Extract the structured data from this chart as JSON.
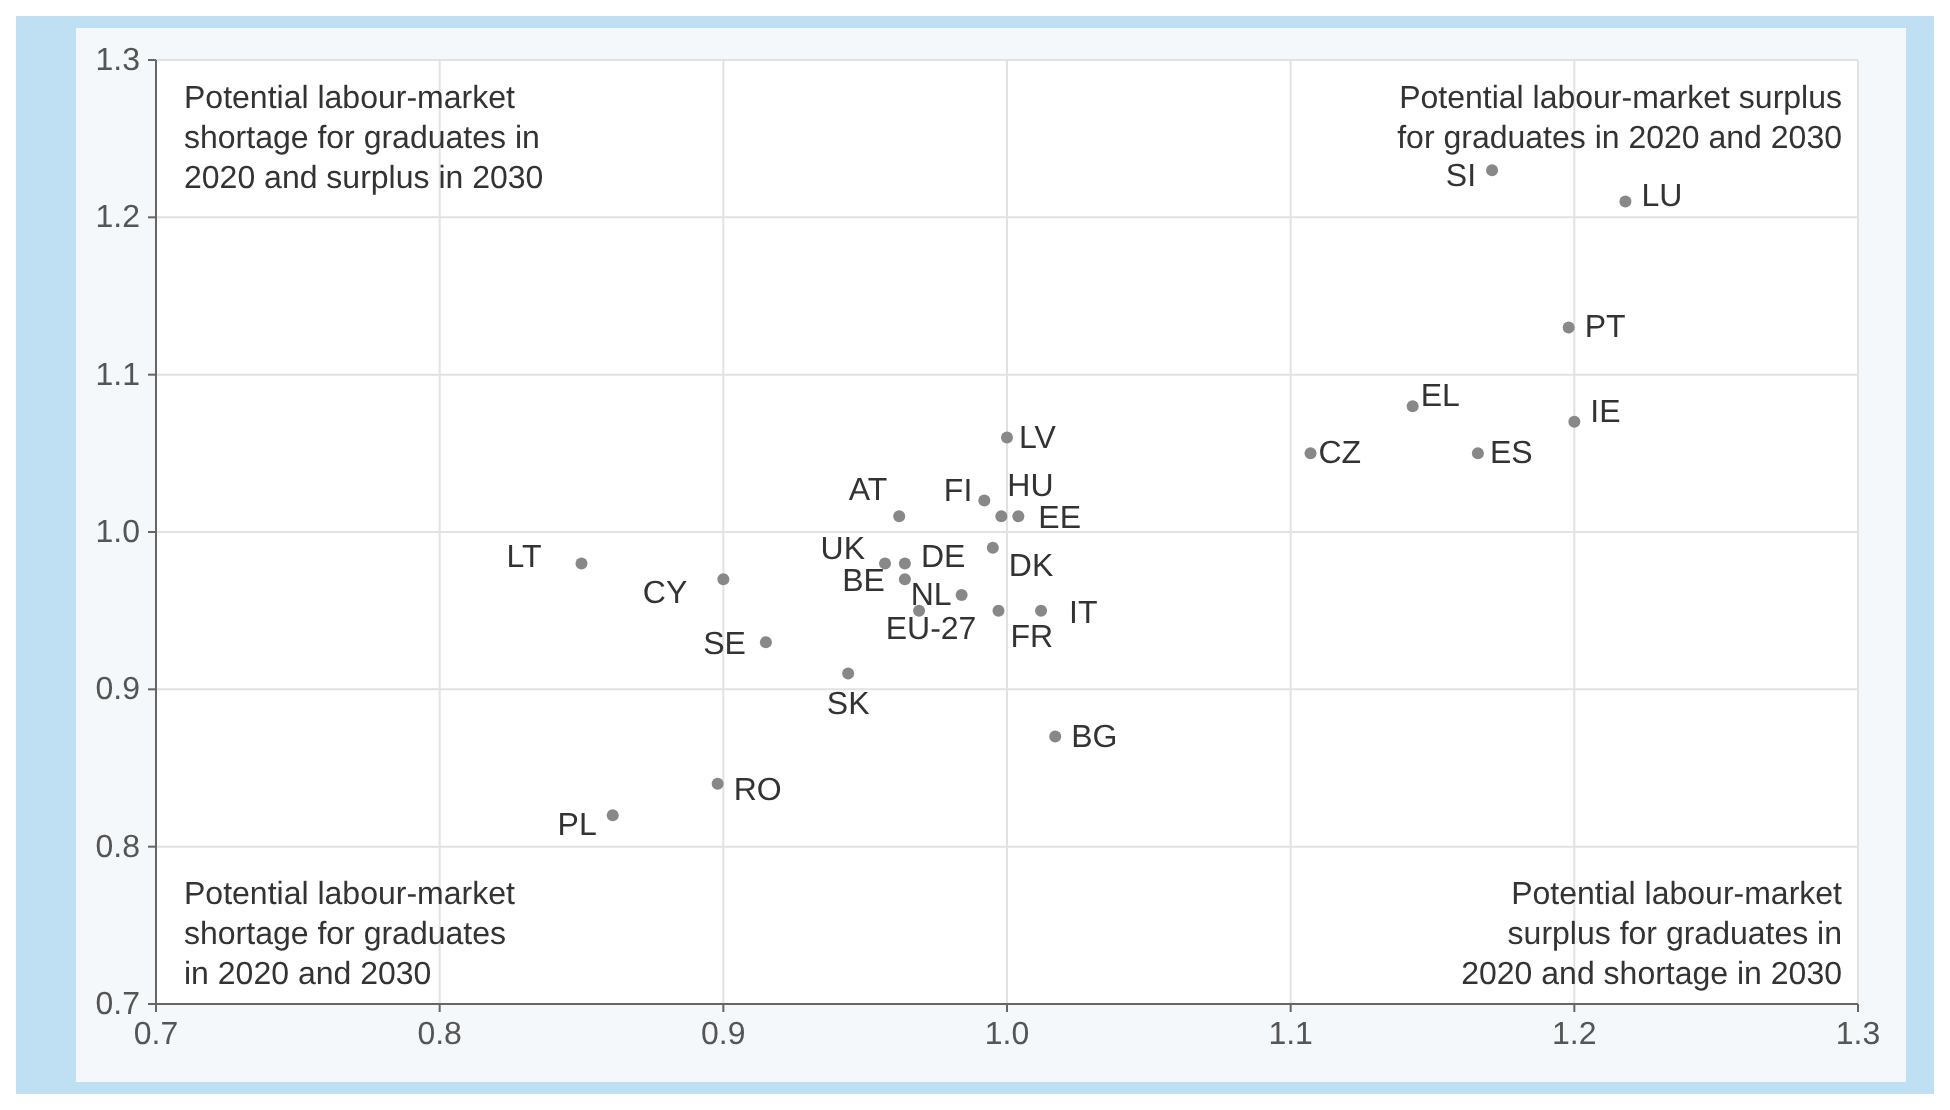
{
  "chart_data": {
    "type": "scatter",
    "xlim": [
      0.7,
      1.3
    ],
    "ylim": [
      0.7,
      1.3
    ],
    "xticks": [
      {
        "value": 0.7,
        "label": "0.7"
      },
      {
        "value": 0.8,
        "label": "0.8"
      },
      {
        "value": 0.9,
        "label": "0.9"
      },
      {
        "value": 1.0,
        "label": "1.0"
      },
      {
        "value": 1.1,
        "label": "1.1"
      },
      {
        "value": 1.2,
        "label": "1.2"
      },
      {
        "value": 1.3,
        "label": "1.3"
      }
    ],
    "yticks": [
      {
        "value": 0.7,
        "label": "0.7"
      },
      {
        "value": 0.8,
        "label": "0.8"
      },
      {
        "value": 0.9,
        "label": "0.9"
      },
      {
        "value": 1.0,
        "label": "1.0"
      },
      {
        "value": 1.1,
        "label": "1.1"
      },
      {
        "value": 1.2,
        "label": "1.2"
      },
      {
        "value": 1.3,
        "label": "1.3"
      }
    ],
    "grid": true,
    "marker": "circle",
    "series": [
      {
        "color": "#888888",
        "x": [
          1.0,
          0.962,
          0.992,
          0.998,
          1.004,
          0.995,
          0.957,
          0.964,
          0.964,
          0.984,
          1.012,
          0.997,
          0.969,
          0.85,
          0.9,
          0.915,
          0.944,
          1.017,
          0.898,
          0.861,
          1.171,
          1.218,
          1.198,
          1.143,
          1.2,
          1.107,
          1.166
        ],
        "values": [
          1.06,
          1.01,
          1.02,
          1.01,
          1.01,
          0.99,
          0.98,
          0.98,
          0.97,
          0.96,
          0.95,
          0.95,
          0.95,
          0.98,
          0.97,
          0.93,
          0.91,
          0.87,
          0.84,
          0.82,
          1.23,
          1.21,
          1.13,
          1.08,
          1.07,
          1.05,
          1.05
        ]
      }
    ],
    "annotations": [
      "Potential labour-market\nshortage for graduates in\n2020 and surplus in 2030",
      "Potential labour-market surplus\nfor graduates in 2020 and 2030",
      "Potential labour-market\nshortage for graduates\nin 2020 and 2030",
      "Potential labour-market\nsurplus for graduates in\n2020 and shortage in 2030",
      {
        "text": "LV",
        "x": 1.0,
        "y": 1.06
      },
      {
        "text": "AT",
        "x": 0.962,
        "y": 1.01
      },
      {
        "text": "FI",
        "x": 0.992,
        "y": 1.02
      },
      {
        "text": "HU",
        "x": 0.998,
        "y": 1.01
      },
      {
        "text": "EE",
        "x": 1.004,
        "y": 1.01
      },
      {
        "text": "DK",
        "x": 0.995,
        "y": 0.99
      },
      {
        "text": "UK",
        "x": 0.957,
        "y": 0.98
      },
      {
        "text": "DE",
        "x": 0.964,
        "y": 0.98
      },
      {
        "text": "BE",
        "x": 0.964,
        "y": 0.97
      },
      {
        "text": "NL",
        "x": 0.984,
        "y": 0.96
      },
      {
        "text": "IT",
        "x": 1.012,
        "y": 0.95
      },
      {
        "text": "FR",
        "x": 0.997,
        "y": 0.95
      },
      {
        "text": "EU-27",
        "x": 0.969,
        "y": 0.95
      },
      {
        "text": "LT",
        "x": 0.85,
        "y": 0.98
      },
      {
        "text": "CY",
        "x": 0.9,
        "y": 0.97
      },
      {
        "text": "SE",
        "x": 0.915,
        "y": 0.93
      },
      {
        "text": "SK",
        "x": 0.944,
        "y": 0.91
      },
      {
        "text": "BG",
        "x": 1.017,
        "y": 0.87
      },
      {
        "text": "RO",
        "x": 0.898,
        "y": 0.84
      },
      {
        "text": "PL",
        "x": 0.861,
        "y": 0.82
      },
      {
        "text": "SI",
        "x": 1.171,
        "y": 1.23
      },
      {
        "text": "LU",
        "x": 1.218,
        "y": 1.21
      },
      {
        "text": "PT",
        "x": 1.198,
        "y": 1.13
      },
      {
        "text": "EL",
        "x": 1.143,
        "y": 1.08
      },
      {
        "text": "IE",
        "x": 1.2,
        "y": 1.07
      },
      {
        "text": "CZ",
        "x": 1.107,
        "y": 1.05
      },
      {
        "text": "ES",
        "x": 1.166,
        "y": 1.05
      }
    ]
  }
}
